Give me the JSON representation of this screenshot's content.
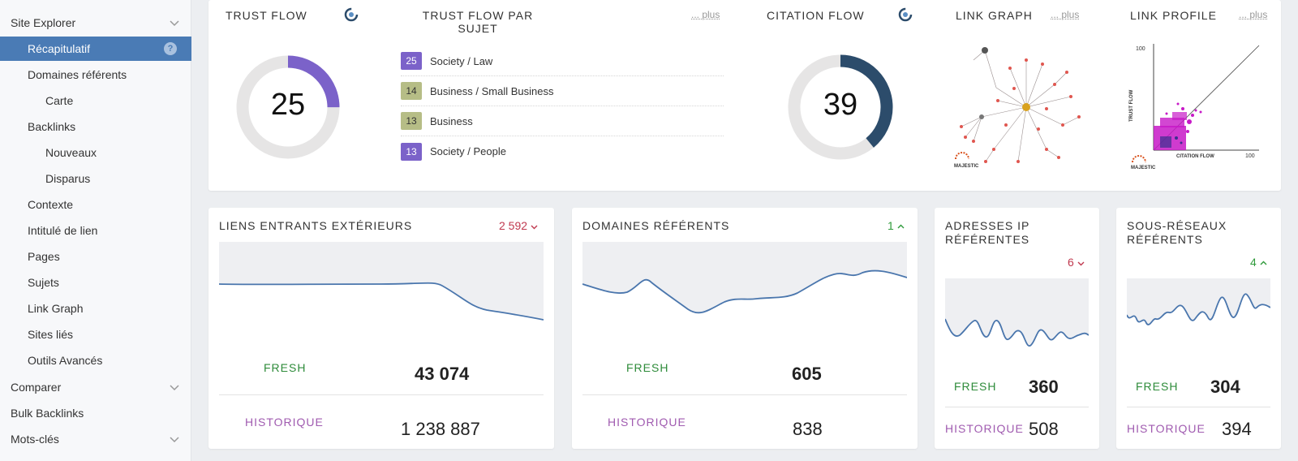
{
  "sidebar": {
    "items": [
      {
        "label": "Site Explorer"
      },
      {
        "label": "Récapitulatif"
      },
      {
        "label": "Domaines référents"
      },
      {
        "label": "Carte"
      },
      {
        "label": "Backlinks"
      },
      {
        "label": "Nouveaux"
      },
      {
        "label": "Disparus"
      },
      {
        "label": "Contexte"
      },
      {
        "label": "Intitulé de lien"
      },
      {
        "label": "Pages"
      },
      {
        "label": "Sujets"
      },
      {
        "label": "Link Graph"
      },
      {
        "label": "Sites liés"
      },
      {
        "label": "Outils Avancés"
      },
      {
        "label": "Comparer"
      },
      {
        "label": "Bulk Backlinks"
      },
      {
        "label": "Mots-clés"
      }
    ]
  },
  "top": {
    "trust_flow": {
      "title": "TRUST FLOW",
      "value": "25",
      "fraction": 0.25,
      "color": "#7b62c9"
    },
    "topical": {
      "title_line1": "TRUST FLOW PAR",
      "title_line2": "SUJET",
      "more": "... plus",
      "topics": [
        {
          "value": "25",
          "label": "Society / Law",
          "color": "#7b62c9"
        },
        {
          "value": "14",
          "label": "Business / Small Business",
          "color": "#b6bd86"
        },
        {
          "value": "13",
          "label": "Business",
          "color": "#b6bd86"
        },
        {
          "value": "13",
          "label": "Society / People",
          "color": "#7b62c9"
        }
      ]
    },
    "citation_flow": {
      "title": "CITATION FLOW",
      "value": "39",
      "fraction": 0.39,
      "color": "#2c4c6b"
    },
    "link_graph": {
      "title": "LINK GRAPH",
      "more": "... plus",
      "brand": "MAJESTIC"
    },
    "link_profile": {
      "title": "LINK PROFILE",
      "more": "... plus",
      "y_label": "TRUST FLOW",
      "x_label": "CITATION FLOW",
      "max_y": "100",
      "max_x": "100",
      "brand": "MAJESTIC"
    }
  },
  "cards": {
    "external_links": {
      "title": "LIENS ENTRANTS EXTÉRIEURS",
      "change": "2 592",
      "fresh_label": "FRESH",
      "fresh_value": "43 074",
      "hist_label": "HISTORIQUE",
      "hist_value": "1 238 887"
    },
    "ref_domains": {
      "title": "DOMAINES RÉFÉRENTS",
      "change": "1",
      "fresh_label": "FRESH",
      "fresh_value": "605",
      "hist_label": "HISTORIQUE",
      "hist_value": "838"
    },
    "ref_ips": {
      "title_line1": "ADRESSES IP",
      "title_line2": "RÉFÉRENTES",
      "change": "6",
      "fresh_label": "FRESH",
      "fresh_value": "360",
      "hist_label": "HISTORIQUE",
      "hist_value": "508"
    },
    "ref_subnets": {
      "title_line1": "SOUS-RÉSEAUX",
      "title_line2": "RÉFÉRENTS",
      "change": "4",
      "fresh_label": "FRESH",
      "fresh_value": "304",
      "hist_label": "HISTORIQUE",
      "hist_value": "394"
    }
  }
}
